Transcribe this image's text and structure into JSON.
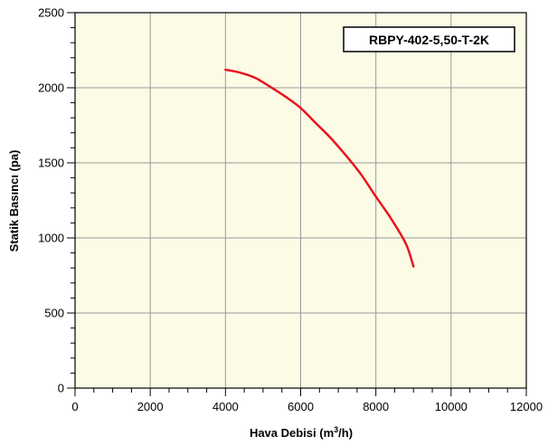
{
  "chart_data": {
    "type": "line",
    "title": "RBPY-402-5,50-T-2K",
    "xlabel": "Hava Debisi (m³/h)",
    "xlabel_parts": {
      "prefix": "Hava Debisi (m",
      "sup": "3",
      "suffix": "/h)"
    },
    "ylabel": "Statik Basıncı (pa)",
    "xlim": [
      0,
      12000
    ],
    "ylim": [
      0,
      2500
    ],
    "x_ticks": [
      0,
      2000,
      4000,
      6000,
      8000,
      10000,
      12000
    ],
    "y_ticks": [
      0,
      500,
      1000,
      1500,
      2000,
      2500
    ],
    "grid": true,
    "plot_background": "#fbfbe6",
    "grid_color": "#9a9a9a",
    "series": [
      {
        "color": "#e8141d",
        "x": [
          4000,
          4400,
          4800,
          5200,
          5600,
          6000,
          6400,
          6800,
          7200,
          7600,
          8000,
          8400,
          8800,
          9000
        ],
        "y": [
          2120,
          2100,
          2065,
          2005,
          1940,
          1865,
          1765,
          1665,
          1550,
          1425,
          1275,
          1130,
          960,
          810
        ]
      }
    ]
  }
}
